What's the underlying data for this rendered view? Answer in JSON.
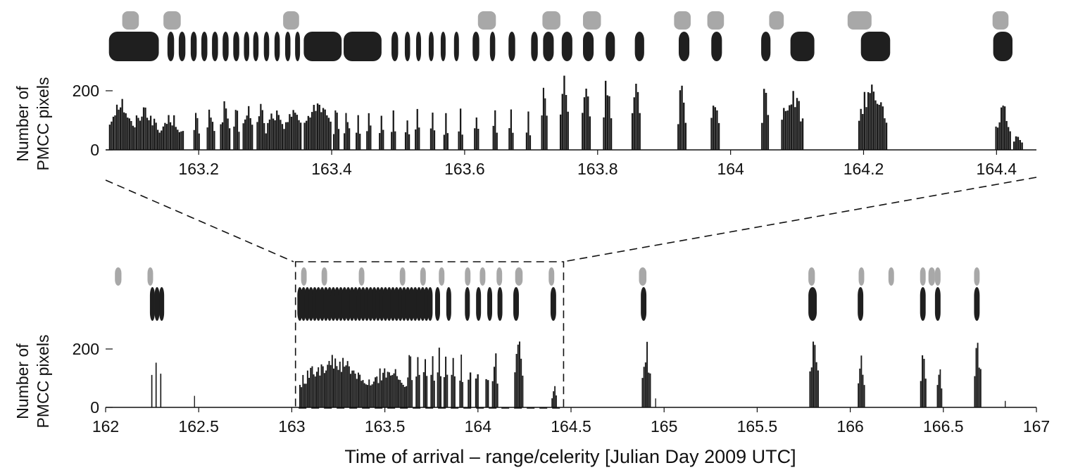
{
  "chart_data": [
    {
      "type": "bar",
      "panel": "top-zoom",
      "xlabel": "",
      "ylabel": [
        "Number of",
        "PMCC pixels"
      ],
      "xlim": [
        163.06,
        164.46
      ],
      "ylim": [
        0,
        280
      ],
      "xticks": [
        {
          "value": 163.2,
          "label": "163.2"
        },
        {
          "value": 163.4,
          "label": "163.4"
        },
        {
          "value": 163.6,
          "label": "163.6"
        },
        {
          "value": 163.8,
          "label": "163.8"
        },
        {
          "value": 164.0,
          "label": "164"
        },
        {
          "value": 164.2,
          "label": "164.2"
        },
        {
          "value": 164.4,
          "label": "164.4"
        }
      ],
      "yticks": [
        {
          "value": 0,
          "label": "0"
        },
        {
          "value": 200,
          "label": "200"
        }
      ],
      "colors": {
        "bars": "#1a1a1a",
        "black_events": "#1f1f1f",
        "gray_events": "#a8a8a8"
      },
      "detection_bursts": [
        {
          "start": 163.065,
          "end": 163.1,
          "peak": 195
        },
        {
          "start": 163.1,
          "end": 163.14,
          "peak": 160
        },
        {
          "start": 163.14,
          "end": 163.178,
          "peak": 125
        },
        {
          "start": 163.192,
          "end": 163.202,
          "peak": 135
        },
        {
          "start": 163.212,
          "end": 163.225,
          "peak": 155
        },
        {
          "start": 163.232,
          "end": 163.248,
          "peak": 170
        },
        {
          "start": 163.252,
          "end": 163.262,
          "peak": 145
        },
        {
          "start": 163.266,
          "end": 163.282,
          "peak": 170
        },
        {
          "start": 163.287,
          "end": 163.3,
          "peak": 180
        },
        {
          "start": 163.3,
          "end": 163.33,
          "peak": 145
        },
        {
          "start": 163.33,
          "end": 163.355,
          "peak": 175
        },
        {
          "start": 163.358,
          "end": 163.4,
          "peak": 185
        },
        {
          "start": 163.402,
          "end": 163.412,
          "peak": 140
        },
        {
          "start": 163.418,
          "end": 163.428,
          "peak": 150
        },
        {
          "start": 163.436,
          "end": 163.444,
          "peak": 140
        },
        {
          "start": 163.452,
          "end": 163.46,
          "peak": 150
        },
        {
          "start": 163.471,
          "end": 163.479,
          "peak": 145
        },
        {
          "start": 163.489,
          "end": 163.497,
          "peak": 150
        },
        {
          "start": 163.51,
          "end": 163.518,
          "peak": 110
        },
        {
          "start": 163.525,
          "end": 163.533,
          "peak": 140
        },
        {
          "start": 163.548,
          "end": 163.556,
          "peak": 135
        },
        {
          "start": 163.568,
          "end": 163.576,
          "peak": 140
        },
        {
          "start": 163.59,
          "end": 163.598,
          "peak": 140
        },
        {
          "start": 163.614,
          "end": 163.622,
          "peak": 155
        },
        {
          "start": 163.642,
          "end": 163.65,
          "peak": 155
        },
        {
          "start": 163.666,
          "end": 163.674,
          "peak": 150
        },
        {
          "start": 163.692,
          "end": 163.7,
          "peak": 130
        },
        {
          "start": 163.715,
          "end": 163.725,
          "peak": 240
        },
        {
          "start": 163.743,
          "end": 163.757,
          "peak": 265
        },
        {
          "start": 163.776,
          "end": 163.79,
          "peak": 255
        },
        {
          "start": 163.808,
          "end": 163.822,
          "peak": 270
        },
        {
          "start": 163.851,
          "end": 163.865,
          "peak": 245
        },
        {
          "start": 163.92,
          "end": 163.934,
          "peak": 240
        },
        {
          "start": 163.97,
          "end": 163.984,
          "peak": 215
        },
        {
          "start": 164.046,
          "end": 164.058,
          "peak": 240
        },
        {
          "start": 164.076,
          "end": 164.11,
          "peak": 225
        },
        {
          "start": 164.192,
          "end": 164.236,
          "peak": 245
        },
        {
          "start": 164.398,
          "end": 164.422,
          "peak": 155
        },
        {
          "start": 164.425,
          "end": 164.44,
          "peak": 60
        }
      ],
      "event_rows": {
        "black_events": [
          [
            163.065,
            163.14
          ],
          [
            163.153,
            163.163
          ],
          [
            163.17,
            163.18
          ],
          [
            163.188,
            163.197
          ],
          [
            163.204,
            163.213
          ],
          [
            163.22,
            163.229
          ],
          [
            163.236,
            163.245
          ],
          [
            163.252,
            163.261
          ],
          [
            163.268,
            163.276
          ],
          [
            163.282,
            163.29
          ],
          [
            163.298,
            163.306
          ],
          [
            163.314,
            163.322
          ],
          [
            163.33,
            163.338
          ],
          [
            163.345,
            163.351
          ],
          [
            163.358,
            163.415
          ],
          [
            163.418,
            163.475
          ],
          [
            163.49,
            163.5
          ],
          [
            163.51,
            163.518
          ],
          [
            163.527,
            163.534
          ],
          [
            163.546,
            163.552
          ],
          [
            163.564,
            163.57
          ],
          [
            163.584,
            163.59
          ],
          [
            163.612,
            163.622
          ],
          [
            163.638,
            163.646
          ],
          [
            163.666,
            163.676
          ],
          [
            163.7,
            163.71
          ],
          [
            163.718,
            163.734
          ],
          [
            163.746,
            163.762
          ],
          [
            163.778,
            163.794
          ],
          [
            163.812,
            163.826
          ],
          [
            163.856,
            163.87
          ],
          [
            163.922,
            163.938
          ],
          [
            163.971,
            163.987
          ],
          [
            164.046,
            164.06
          ],
          [
            164.09,
            164.126
          ],
          [
            164.196,
            164.24
          ],
          [
            164.395,
            164.424
          ]
        ],
        "gray_events": [
          [
            163.085,
            163.11
          ],
          [
            163.147,
            163.173
          ],
          [
            163.327,
            163.351
          ],
          [
            163.62,
            163.647
          ],
          [
            163.717,
            163.744
          ],
          [
            163.778,
            163.805
          ],
          [
            163.915,
            163.94
          ],
          [
            163.965,
            163.99
          ],
          [
            164.058,
            164.08
          ],
          [
            164.176,
            164.212
          ],
          [
            164.394,
            164.418
          ]
        ]
      }
    },
    {
      "type": "bar",
      "panel": "bottom-overview",
      "xlabel": "Time of arrival – range/celerity [Julian Day 2009 UTC]",
      "ylabel": [
        "Number of",
        "PMCC pixels"
      ],
      "xlim": [
        162,
        167
      ],
      "ylim": [
        0,
        280
      ],
      "xticks": [
        {
          "value": 162.0,
          "label": "162"
        },
        {
          "value": 162.5,
          "label": "162.5"
        },
        {
          "value": 163.0,
          "label": "163"
        },
        {
          "value": 163.5,
          "label": "163.5"
        },
        {
          "value": 164.0,
          "label": "164"
        },
        {
          "value": 164.5,
          "label": "164.5"
        },
        {
          "value": 165.0,
          "label": "165"
        },
        {
          "value": 165.5,
          "label": "165.5"
        },
        {
          "value": 166.0,
          "label": "166"
        },
        {
          "value": 166.5,
          "label": "166.5"
        },
        {
          "value": 167.0,
          "label": "167"
        }
      ],
      "yticks": [
        {
          "value": 0,
          "label": "0"
        },
        {
          "value": 200,
          "label": "200"
        }
      ],
      "zoom_window": {
        "start": 163.02,
        "end": 164.46
      },
      "detection_bursts": [
        {
          "start": 162.245,
          "end": 162.252,
          "peak": 135
        },
        {
          "start": 162.268,
          "end": 162.275,
          "peak": 178
        },
        {
          "start": 162.293,
          "end": 162.3,
          "peak": 140
        },
        {
          "start": 162.475,
          "end": 162.478,
          "peak": 45
        },
        {
          "start": 163.04,
          "end": 163.42,
          "peak": 180
        },
        {
          "start": 163.42,
          "end": 163.62,
          "peak": 150
        },
        {
          "start": 163.62,
          "end": 163.65,
          "peak": 245
        },
        {
          "start": 163.665,
          "end": 163.69,
          "peak": 255
        },
        {
          "start": 163.705,
          "end": 163.73,
          "peak": 230
        },
        {
          "start": 163.745,
          "end": 163.77,
          "peak": 250
        },
        {
          "start": 163.78,
          "end": 163.805,
          "peak": 265
        },
        {
          "start": 163.815,
          "end": 163.84,
          "peak": 240
        },
        {
          "start": 163.855,
          "end": 163.88,
          "peak": 240
        },
        {
          "start": 163.9,
          "end": 163.922,
          "peak": 210
        },
        {
          "start": 163.945,
          "end": 163.965,
          "peak": 220
        },
        {
          "start": 163.985,
          "end": 164.005,
          "peak": 215
        },
        {
          "start": 164.04,
          "end": 164.06,
          "peak": 200
        },
        {
          "start": 164.075,
          "end": 164.11,
          "peak": 215
        },
        {
          "start": 164.195,
          "end": 164.245,
          "peak": 245
        },
        {
          "start": 164.395,
          "end": 164.425,
          "peak": 85
        },
        {
          "start": 164.88,
          "end": 164.93,
          "peak": 232
        },
        {
          "start": 164.952,
          "end": 164.956,
          "peak": 40
        },
        {
          "start": 165.78,
          "end": 165.832,
          "peak": 245
        },
        {
          "start": 166.04,
          "end": 166.08,
          "peak": 190
        },
        {
          "start": 166.375,
          "end": 166.41,
          "peak": 230
        },
        {
          "start": 166.465,
          "end": 166.495,
          "peak": 155
        },
        {
          "start": 166.665,
          "end": 166.705,
          "peak": 248
        },
        {
          "start": 166.83,
          "end": 166.834,
          "peak": 30
        }
      ],
      "event_rows": {
        "black_events": [
          [
            162.238,
            162.258
          ],
          [
            162.263,
            162.283
          ],
          [
            162.288,
            162.308
          ],
          [
            163.03,
            163.05
          ],
          [
            163.05,
            163.07
          ],
          [
            163.07,
            163.09
          ],
          [
            163.09,
            163.11
          ],
          [
            163.11,
            163.13
          ],
          [
            163.13,
            163.15
          ],
          [
            163.15,
            163.17
          ],
          [
            163.17,
            163.19
          ],
          [
            163.19,
            163.21
          ],
          [
            163.21,
            163.23
          ],
          [
            163.23,
            163.25
          ],
          [
            163.25,
            163.27
          ],
          [
            163.27,
            163.29
          ],
          [
            163.29,
            163.31
          ],
          [
            163.31,
            163.33
          ],
          [
            163.33,
            163.35
          ],
          [
            163.35,
            163.37
          ],
          [
            163.37,
            163.39
          ],
          [
            163.39,
            163.41
          ],
          [
            163.41,
            163.43
          ],
          [
            163.43,
            163.45
          ],
          [
            163.45,
            163.47
          ],
          [
            163.47,
            163.49
          ],
          [
            163.49,
            163.51
          ],
          [
            163.51,
            163.53
          ],
          [
            163.53,
            163.55
          ],
          [
            163.55,
            163.57
          ],
          [
            163.57,
            163.59
          ],
          [
            163.59,
            163.61
          ],
          [
            163.61,
            163.63
          ],
          [
            163.63,
            163.65
          ],
          [
            163.65,
            163.67
          ],
          [
            163.67,
            163.69
          ],
          [
            163.69,
            163.71
          ],
          [
            163.71,
            163.73
          ],
          [
            163.73,
            163.75
          ],
          [
            163.77,
            163.795
          ],
          [
            163.83,
            163.855
          ],
          [
            163.93,
            163.955
          ],
          [
            163.99,
            164.015
          ],
          [
            164.05,
            164.075
          ],
          [
            164.105,
            164.13
          ],
          [
            164.19,
            164.22
          ],
          [
            164.39,
            164.42
          ],
          [
            164.875,
            164.905
          ],
          [
            165.775,
            165.82
          ],
          [
            166.04,
            166.07
          ],
          [
            166.375,
            166.405
          ],
          [
            166.455,
            166.485
          ],
          [
            166.665,
            166.695
          ]
        ],
        "gray_events": [
          [
            162.05,
            162.085
          ],
          [
            162.225,
            162.255
          ],
          [
            163.05,
            163.08
          ],
          [
            163.16,
            163.19
          ],
          [
            163.36,
            163.39
          ],
          [
            163.58,
            163.61
          ],
          [
            163.69,
            163.72
          ],
          [
            163.79,
            163.82
          ],
          [
            163.93,
            163.96
          ],
          [
            164.01,
            164.04
          ],
          [
            164.1,
            164.13
          ],
          [
            164.2,
            164.24
          ],
          [
            164.38,
            164.41
          ],
          [
            164.865,
            164.905
          ],
          [
            165.775,
            165.81
          ],
          [
            166.045,
            166.075
          ],
          [
            166.205,
            166.235
          ],
          [
            166.375,
            166.405
          ],
          [
            166.42,
            166.455
          ],
          [
            166.455,
            166.485
          ],
          [
            166.665,
            166.695
          ]
        ]
      }
    }
  ]
}
